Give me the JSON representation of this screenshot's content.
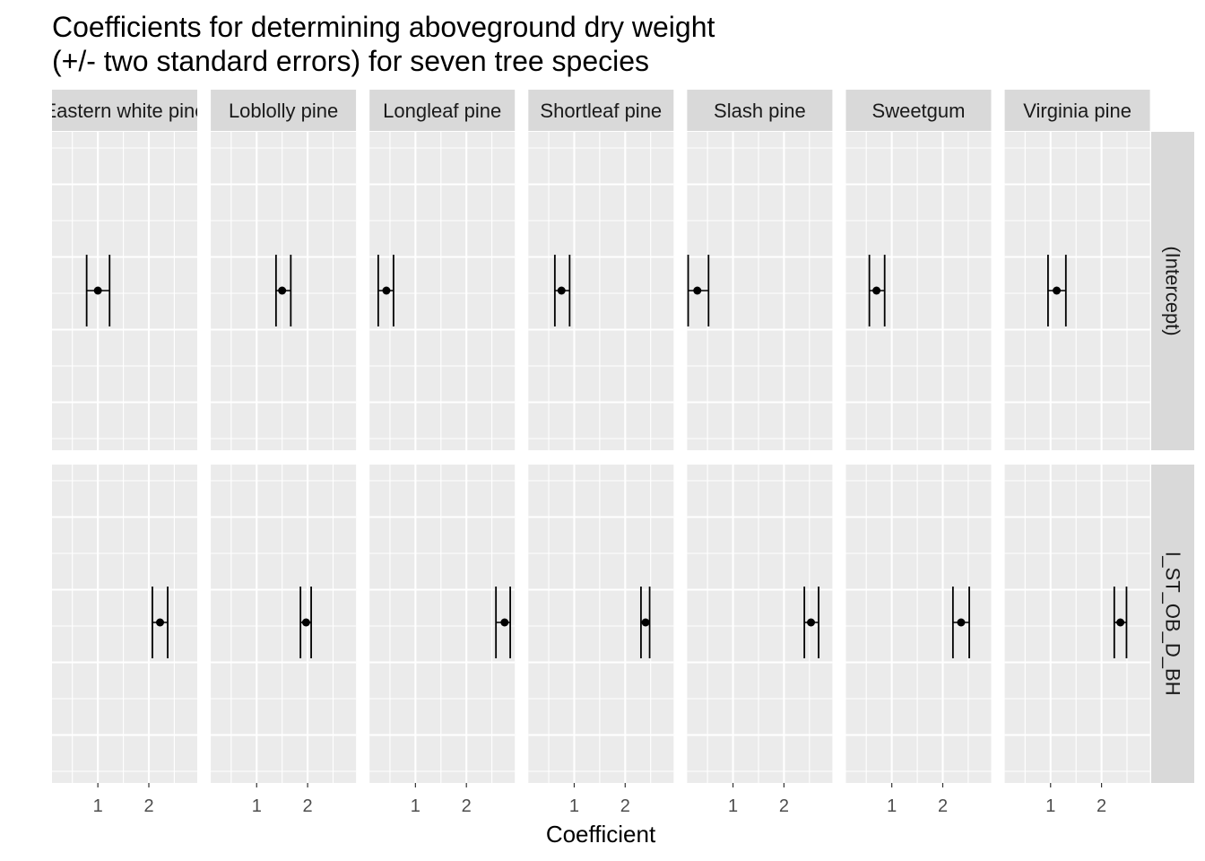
{
  "chart_data": {
    "type": "errorbar-facet",
    "title": [
      "Coefficients for determining aboveground dry weight",
      "(+/- two standard errors) for seven tree species"
    ],
    "xlabel": "Coefficient",
    "ylabel": "",
    "x_ticks": [
      1,
      2
    ],
    "x_tick_labels": [
      "1",
      "2"
    ],
    "facet_columns": [
      "Eastern white pine",
      "Loblolly pine",
      "Longleaf pine",
      "Shortleaf pine",
      "Slash pine",
      "Sweetgum",
      "Virginia pine"
    ],
    "facet_rows": [
      "(Intercept)",
      "l_ST_OB_D_BH"
    ],
    "grid": true,
    "xlim": [
      0.1,
      2.95
    ],
    "series": [
      {
        "name": "(Intercept)",
        "estimate": [
          1.0,
          1.5,
          0.43,
          0.75,
          0.3,
          0.7,
          1.12
        ],
        "lower": [
          0.78,
          1.38,
          0.27,
          0.62,
          0.12,
          0.56,
          0.95
        ],
        "upper": [
          1.23,
          1.67,
          0.57,
          0.91,
          0.52,
          0.86,
          1.3
        ]
      },
      {
        "name": "l_ST_OB_D_BH",
        "estimate": [
          2.22,
          1.97,
          2.75,
          2.4,
          2.53,
          2.36,
          2.37
        ],
        "lower": [
          2.07,
          1.86,
          2.58,
          2.31,
          2.4,
          2.2,
          2.25
        ],
        "upper": [
          2.37,
          2.07,
          2.86,
          2.48,
          2.68,
          2.52,
          2.49
        ]
      }
    ]
  }
}
